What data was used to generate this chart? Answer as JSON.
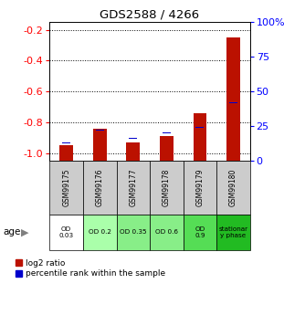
{
  "title": "GDS2588 / 4266",
  "samples": [
    "GSM99175",
    "GSM99176",
    "GSM99177",
    "GSM99178",
    "GSM99179",
    "GSM99180"
  ],
  "log2_ratio": [
    -0.95,
    -0.84,
    -0.93,
    -0.89,
    -0.74,
    -0.25
  ],
  "percentile_rank_pct": [
    13,
    22,
    16,
    20,
    24,
    42
  ],
  "age_labels": [
    "OD\n0.03",
    "OD 0.2",
    "OD 0.35",
    "OD 0.6",
    "OD\n0.9",
    "stationar\ny phase"
  ],
  "age_colors": [
    "#ffffff",
    "#aaffaa",
    "#88ee88",
    "#88ee88",
    "#55dd55",
    "#22bb22"
  ],
  "ylim_left": [
    -1.05,
    -0.15
  ],
  "ylim_right": [
    0,
    100
  ],
  "yticks_left": [
    -1.0,
    -0.8,
    -0.6,
    -0.4,
    -0.2
  ],
  "yticks_right": [
    0,
    25,
    50,
    75,
    100
  ],
  "ytick_labels_right": [
    "0",
    "25",
    "50",
    "75",
    "100%"
  ],
  "bar_color_red": "#bb1100",
  "bar_color_blue": "#0000cc",
  "sample_bg_color": "#cccccc",
  "legend_red": "log2 ratio",
  "legend_blue": "percentile rank within the sample",
  "bar_width": 0.4,
  "blue_sq_size": 0.25
}
